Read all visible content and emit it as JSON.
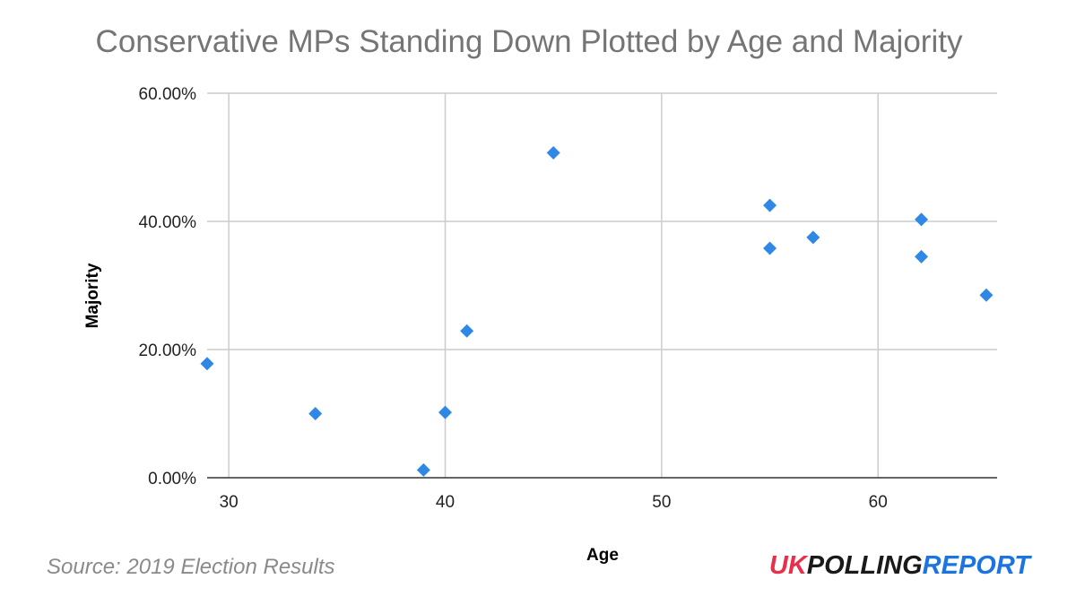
{
  "chart_data": {
    "type": "scatter",
    "title": "Conservative MPs Standing Down Plotted by Age and Majority",
    "xlabel": "Age",
    "ylabel": "Majority",
    "xlim": [
      29,
      65.5
    ],
    "ylim": [
      0,
      60
    ],
    "x_ticks": [
      {
        "value": 30,
        "label": "30"
      },
      {
        "value": 40,
        "label": "40"
      },
      {
        "value": 50,
        "label": "50"
      },
      {
        "value": 60,
        "label": "60"
      }
    ],
    "y_ticks": [
      {
        "value": 0,
        "label": "0.00%"
      },
      {
        "value": 20,
        "label": "20.00%"
      },
      {
        "value": 40,
        "label": "40.00%"
      },
      {
        "value": 60,
        "label": "60.00%"
      }
    ],
    "grid": true,
    "legend": "none",
    "marker": "diamond",
    "series": [
      {
        "color": "#2f88e6",
        "points": [
          {
            "x": 29,
            "y": 17.8
          },
          {
            "x": 34,
            "y": 10.0
          },
          {
            "x": 39,
            "y": 1.2
          },
          {
            "x": 40,
            "y": 10.2
          },
          {
            "x": 41,
            "y": 22.9
          },
          {
            "x": 45,
            "y": 50.7
          },
          {
            "x": 55,
            "y": 42.5
          },
          {
            "x": 55,
            "y": 35.8
          },
          {
            "x": 57,
            "y": 37.5
          },
          {
            "x": 62,
            "y": 40.3
          },
          {
            "x": 62,
            "y": 34.5
          },
          {
            "x": 65,
            "y": 28.5
          }
        ]
      }
    ]
  },
  "footer": {
    "source": "Source: 2019 Election Results",
    "logo_uk": "UK",
    "logo_polling": "POLLING",
    "logo_report": "REPORT",
    "logo_colors": {
      "uk": "#e8304a",
      "polling": "#1a1a1a",
      "report": "#1c74e0"
    }
  },
  "colors": {
    "gridline": "#cccccc",
    "axis": "#333333",
    "title": "#757575"
  }
}
